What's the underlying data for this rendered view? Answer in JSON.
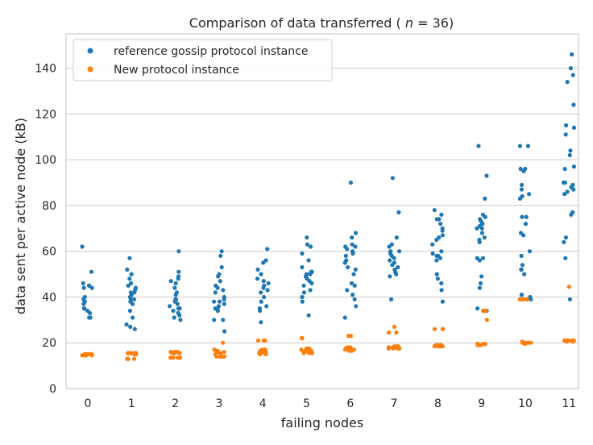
{
  "chart_data": {
    "type": "scatter",
    "title": "Comparison of data transferred (n = 36)",
    "xlabel": "failing nodes",
    "ylabel": "data sent per active node (kB)",
    "categories": [
      "0",
      "1",
      "2",
      "3",
      "4",
      "5",
      "6",
      "7",
      "8",
      "9",
      "10",
      "11"
    ],
    "ylim": [
      0,
      155
    ],
    "yticks": [
      0,
      20,
      40,
      60,
      80,
      100,
      120,
      140
    ],
    "grid": true,
    "legend_position": "top-left",
    "series": [
      {
        "name": "reference gossip protocol instance",
        "color": "#1f77b4",
        "points": [
          [
            62,
            51,
            46,
            45,
            44,
            45,
            44,
            40,
            39,
            38,
            37,
            35,
            35,
            34,
            33,
            31,
            31,
            31
          ],
          [
            57,
            52,
            50,
            48,
            46,
            45,
            44,
            43,
            42,
            42,
            41,
            40,
            40,
            39,
            39,
            38,
            37,
            34,
            31,
            28,
            27,
            26
          ],
          [
            60,
            51,
            49,
            48,
            47,
            46,
            44,
            42,
            41,
            39,
            39,
            38,
            37,
            36,
            35,
            35,
            34,
            33,
            32,
            31,
            30
          ],
          [
            60,
            58,
            53,
            50,
            49,
            47,
            45,
            44,
            43,
            42,
            40,
            39,
            38,
            38,
            37,
            36,
            35,
            35,
            34,
            30,
            30,
            25
          ],
          [
            61,
            56,
            55,
            52,
            50,
            48,
            47,
            46,
            45,
            44,
            43,
            42,
            40,
            38,
            36,
            35,
            34,
            29
          ],
          [
            66,
            63,
            62,
            59,
            56,
            53,
            51,
            51,
            50,
            50,
            49,
            48,
            47,
            46,
            45,
            43,
            42,
            40,
            38,
            32
          ],
          [
            90,
            68,
            66,
            63,
            62,
            62,
            61,
            60,
            59,
            58,
            56,
            55,
            53,
            52,
            50,
            46,
            45,
            43,
            41,
            39,
            36,
            31
          ],
          [
            92,
            77,
            66,
            63,
            62,
            60,
            60,
            59,
            58,
            57,
            56,
            55,
            54,
            53,
            52,
            51,
            50,
            49,
            39
          ],
          [
            78,
            76,
            74,
            74,
            72,
            70,
            69,
            67,
            66,
            65,
            63,
            60,
            59,
            58,
            58,
            57,
            56,
            50,
            48,
            46,
            43,
            38
          ],
          [
            106,
            93,
            83,
            76,
            75,
            74,
            73,
            72,
            71,
            70,
            70,
            68,
            66,
            65,
            64,
            57,
            57,
            56,
            49,
            46,
            44,
            35,
            34
          ],
          [
            106,
            106,
            96,
            96,
            95,
            89,
            87,
            85,
            84,
            83,
            75,
            75,
            72,
            68,
            67,
            60,
            58,
            54,
            52,
            52,
            50,
            41,
            40,
            39
          ],
          [
            146,
            140,
            137,
            134,
            124,
            115,
            114,
            111,
            104,
            102,
            97,
            96,
            90,
            90,
            89,
            88,
            87,
            86,
            85,
            77,
            76,
            66,
            64,
            57,
            39
          ]
        ]
      },
      {
        "name": "New protocol instance",
        "color": "#ff7f0e",
        "points": [
          [
            15,
            15,
            15,
            15,
            15,
            15,
            15,
            14.5,
            14.5,
            14.5,
            14.5,
            14.5
          ],
          [
            15.5,
            15.5,
            15.5,
            15.5,
            15.5,
            15.5,
            15.5,
            15,
            15,
            15,
            13,
            13,
            13,
            13
          ],
          [
            16,
            16,
            16,
            16,
            16,
            16,
            15.5,
            15.5,
            15.5,
            15.5,
            13.5,
            13.5,
            13.5,
            13.5,
            13.5,
            13.5,
            13.5
          ],
          [
            20,
            17,
            16.5,
            16.5,
            16.5,
            16,
            16,
            15.5,
            15.5,
            15,
            14,
            14,
            14,
            14,
            14,
            14
          ],
          [
            21,
            21,
            21,
            17,
            17,
            17,
            16.5,
            16.5,
            16,
            16,
            15.5,
            15.5,
            15,
            15
          ],
          [
            22,
            22,
            17.5,
            17.5,
            17,
            17,
            17,
            16.5,
            16.5,
            16,
            16,
            16,
            15.5,
            15.5,
            15.5
          ],
          [
            23,
            23,
            18,
            18,
            17.5,
            17.5,
            17.5,
            17,
            17,
            17,
            17,
            16.5,
            16.5
          ],
          [
            27,
            24.5,
            24.5,
            18.5,
            18.5,
            18,
            18,
            18,
            18,
            17.5,
            17.5,
            17.5,
            17.5
          ],
          [
            26,
            26,
            26,
            19,
            19,
            19,
            19,
            18.5,
            18.5,
            18.5,
            18.5,
            18.5
          ],
          [
            34,
            34,
            34,
            34,
            30,
            19.5,
            19.5,
            19.5,
            19.5,
            19.5,
            19,
            19,
            19
          ],
          [
            39,
            39,
            39,
            39,
            20.5,
            20.5,
            20,
            20,
            20,
            20,
            20,
            20,
            19.5
          ],
          [
            44.5,
            21,
            21,
            21,
            21,
            21,
            21,
            21,
            20.5,
            20.5
          ]
        ]
      }
    ]
  }
}
